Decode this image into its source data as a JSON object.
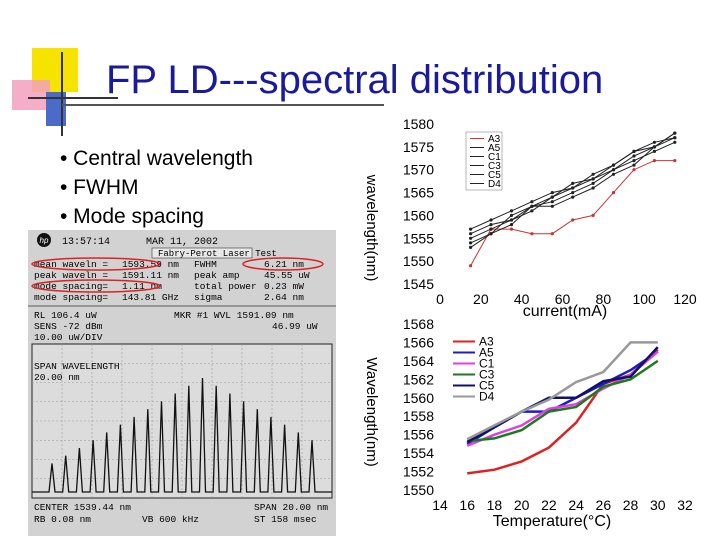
{
  "slide": {
    "title": "FP LD---spectral distribution",
    "bullets": [
      "• Central wavelength",
      "• FWHM",
      "• Mode spacing"
    ]
  },
  "analyzer": {
    "time": "13:57:14",
    "date": "MAR 11, 2002",
    "test_name": "Fabry-Perot Laser Test",
    "rows": [
      {
        "label": "mean waveln =",
        "value": "1593.59 nm",
        "label2": "FWHM",
        "value2": "6.21 nm"
      },
      {
        "label": "peak waveln =",
        "value": "1591.11 nm",
        "label2": "peak amp",
        "value2": "45.55 uW"
      },
      {
        "label": "mode spacing=",
        "value": "1.11 nm",
        "label2": "total power",
        "value2": "0.23 mW"
      },
      {
        "label": "mode spacing=",
        "value": "143.81 GHz",
        "label2": "sigma",
        "value2": "2.64 nm"
      }
    ],
    "rl": "RL 106.4 uW",
    "mkr": "MKR #1 WVL 1591.09 nm",
    "mkr_val": "46.99 uW",
    "sens": "SENS -72 dBm",
    "scale": "10.00 uW/DIV",
    "span_label": "SPAN WAVELENGTH",
    "span_val": "20.00 nm",
    "center": "CENTER 1539.44 nm",
    "span2": "SPAN 20.00 nm",
    "rb": "RB 0.08 nm",
    "vb": "VB 600 kHz",
    "st": "ST 158 msec"
  },
  "chart_data": [
    {
      "type": "line",
      "title": "",
      "xlabel": "current(mA)",
      "ylabel": "wavelength(nm)",
      "xlim": [
        0,
        120
      ],
      "ylim": [
        1545,
        1580
      ],
      "x_ticks": [
        "0",
        "20",
        "40",
        "60",
        "80",
        "100",
        "120"
      ],
      "y_ticks": [
        "1580",
        "1575",
        "1570",
        "1565",
        "1560",
        "1555",
        "1550",
        "1545"
      ],
      "legend": [
        "A3",
        "A5",
        "C1",
        "C3",
        "C5",
        "D4"
      ],
      "legend_position": "top-center",
      "series": [
        {
          "name": "A3",
          "color": "#cc3333",
          "x": [
            15,
            25,
            35,
            45,
            55,
            65,
            75,
            85,
            95,
            105,
            115
          ],
          "y": [
            1549,
            1557,
            1557,
            1556,
            1556,
            1559,
            1560,
            1565,
            1570,
            1572,
            1572
          ]
        },
        {
          "name": "A5",
          "color": "#222222",
          "x": [
            15,
            25,
            35,
            45,
            55,
            65,
            75,
            85,
            95,
            105,
            115
          ],
          "y": [
            1557,
            1559,
            1561,
            1563,
            1565,
            1566,
            1568,
            1571,
            1574,
            1575,
            1578
          ]
        },
        {
          "name": "C1",
          "color": "#222222",
          "x": [
            15,
            25,
            35,
            45,
            55,
            65,
            75,
            85,
            95,
            105,
            115
          ],
          "y": [
            1555,
            1557,
            1559,
            1561,
            1564,
            1566,
            1569,
            1571,
            1574,
            1576,
            1577
          ]
        },
        {
          "name": "C3",
          "color": "#222222",
          "x": [
            15,
            25,
            35,
            45,
            55,
            65,
            75,
            85,
            95,
            105,
            115
          ],
          "y": [
            1554,
            1556,
            1560,
            1562,
            1563,
            1565,
            1567,
            1570,
            1572,
            1574,
            1576
          ]
        },
        {
          "name": "C5",
          "color": "#222222",
          "x": [
            15,
            25,
            35,
            45,
            55,
            65,
            75,
            85,
            95,
            105,
            115
          ],
          "y": [
            1556,
            1558,
            1559,
            1562,
            1564,
            1567,
            1568,
            1570,
            1573,
            1575,
            1578
          ]
        },
        {
          "name": "D4",
          "color": "#222222",
          "x": [
            15,
            25,
            35,
            45,
            55,
            65,
            75,
            85,
            95,
            105,
            115
          ],
          "y": [
            1553,
            1556,
            1558,
            1562,
            1562,
            1564,
            1566,
            1569,
            1571,
            1575,
            1577
          ]
        }
      ]
    },
    {
      "type": "line",
      "title": "",
      "xlabel": "Temperature(°C)",
      "ylabel": "Wavelength(nm)",
      "xlim": [
        14,
        32
      ],
      "ylim": [
        1550,
        1568
      ],
      "x_ticks": [
        "14",
        "16",
        "18",
        "20",
        "22",
        "24",
        "26",
        "28",
        "30",
        "32"
      ],
      "y_ticks": [
        "1568",
        "1566",
        "1564",
        "1562",
        "1560",
        "1558",
        "1556",
        "1554",
        "1552",
        "1550"
      ],
      "legend": [
        "A3",
        "A5",
        "C1",
        "C3",
        "C5",
        "D4"
      ],
      "legend_position": "top-left",
      "series": [
        {
          "name": "A3",
          "color": "#dd2222",
          "x": [
            16,
            18,
            20,
            22,
            24,
            26,
            28,
            30
          ],
          "y": [
            1551.8,
            1552.2,
            1553.1,
            1554.6,
            1557.3,
            1561.5,
            1562.5,
            1565.2
          ]
        },
        {
          "name": "A5",
          "color": "#1c1cc8",
          "x": [
            16,
            18,
            20,
            22,
            24,
            26,
            28,
            30
          ],
          "y": [
            1555.0,
            1556.8,
            1558.5,
            1558.5,
            1560.0,
            1561.5,
            1563.0,
            1565.0
          ]
        },
        {
          "name": "C1",
          "color": "#e040e0",
          "x": [
            16,
            18,
            20,
            22,
            24,
            26,
            28,
            30
          ],
          "y": [
            1554.8,
            1556.0,
            1557.0,
            1558.8,
            1559.3,
            1561.0,
            1562.5,
            1565.0
          ]
        },
        {
          "name": "C3",
          "color": "#1e7a1e",
          "x": [
            16,
            18,
            20,
            22,
            24,
            26,
            28,
            30
          ],
          "y": [
            1555.3,
            1555.6,
            1556.5,
            1558.5,
            1559.0,
            1561.2,
            1562.0,
            1564.0
          ]
        },
        {
          "name": "C5",
          "color": "#111166",
          "x": [
            16,
            18,
            20,
            22,
            24,
            26,
            28,
            30
          ],
          "y": [
            1555.2,
            1556.8,
            1558.5,
            1560.0,
            1560.0,
            1561.8,
            1562.3,
            1565.5
          ]
        },
        {
          "name": "D4",
          "color": "#999999",
          "x": [
            16,
            18,
            20,
            22,
            24,
            26,
            28,
            30
          ],
          "y": [
            1555.5,
            1557.0,
            1558.5,
            1559.8,
            1561.7,
            1562.8,
            1566.0,
            1566.0
          ]
        }
      ]
    }
  ],
  "colors": {
    "title": "#1a1a9c",
    "logo_yellow": "#f7e300",
    "logo_pink": "#f2a0bd",
    "logo_blue": "#4a6bc7",
    "highlight": "#dd2222"
  }
}
